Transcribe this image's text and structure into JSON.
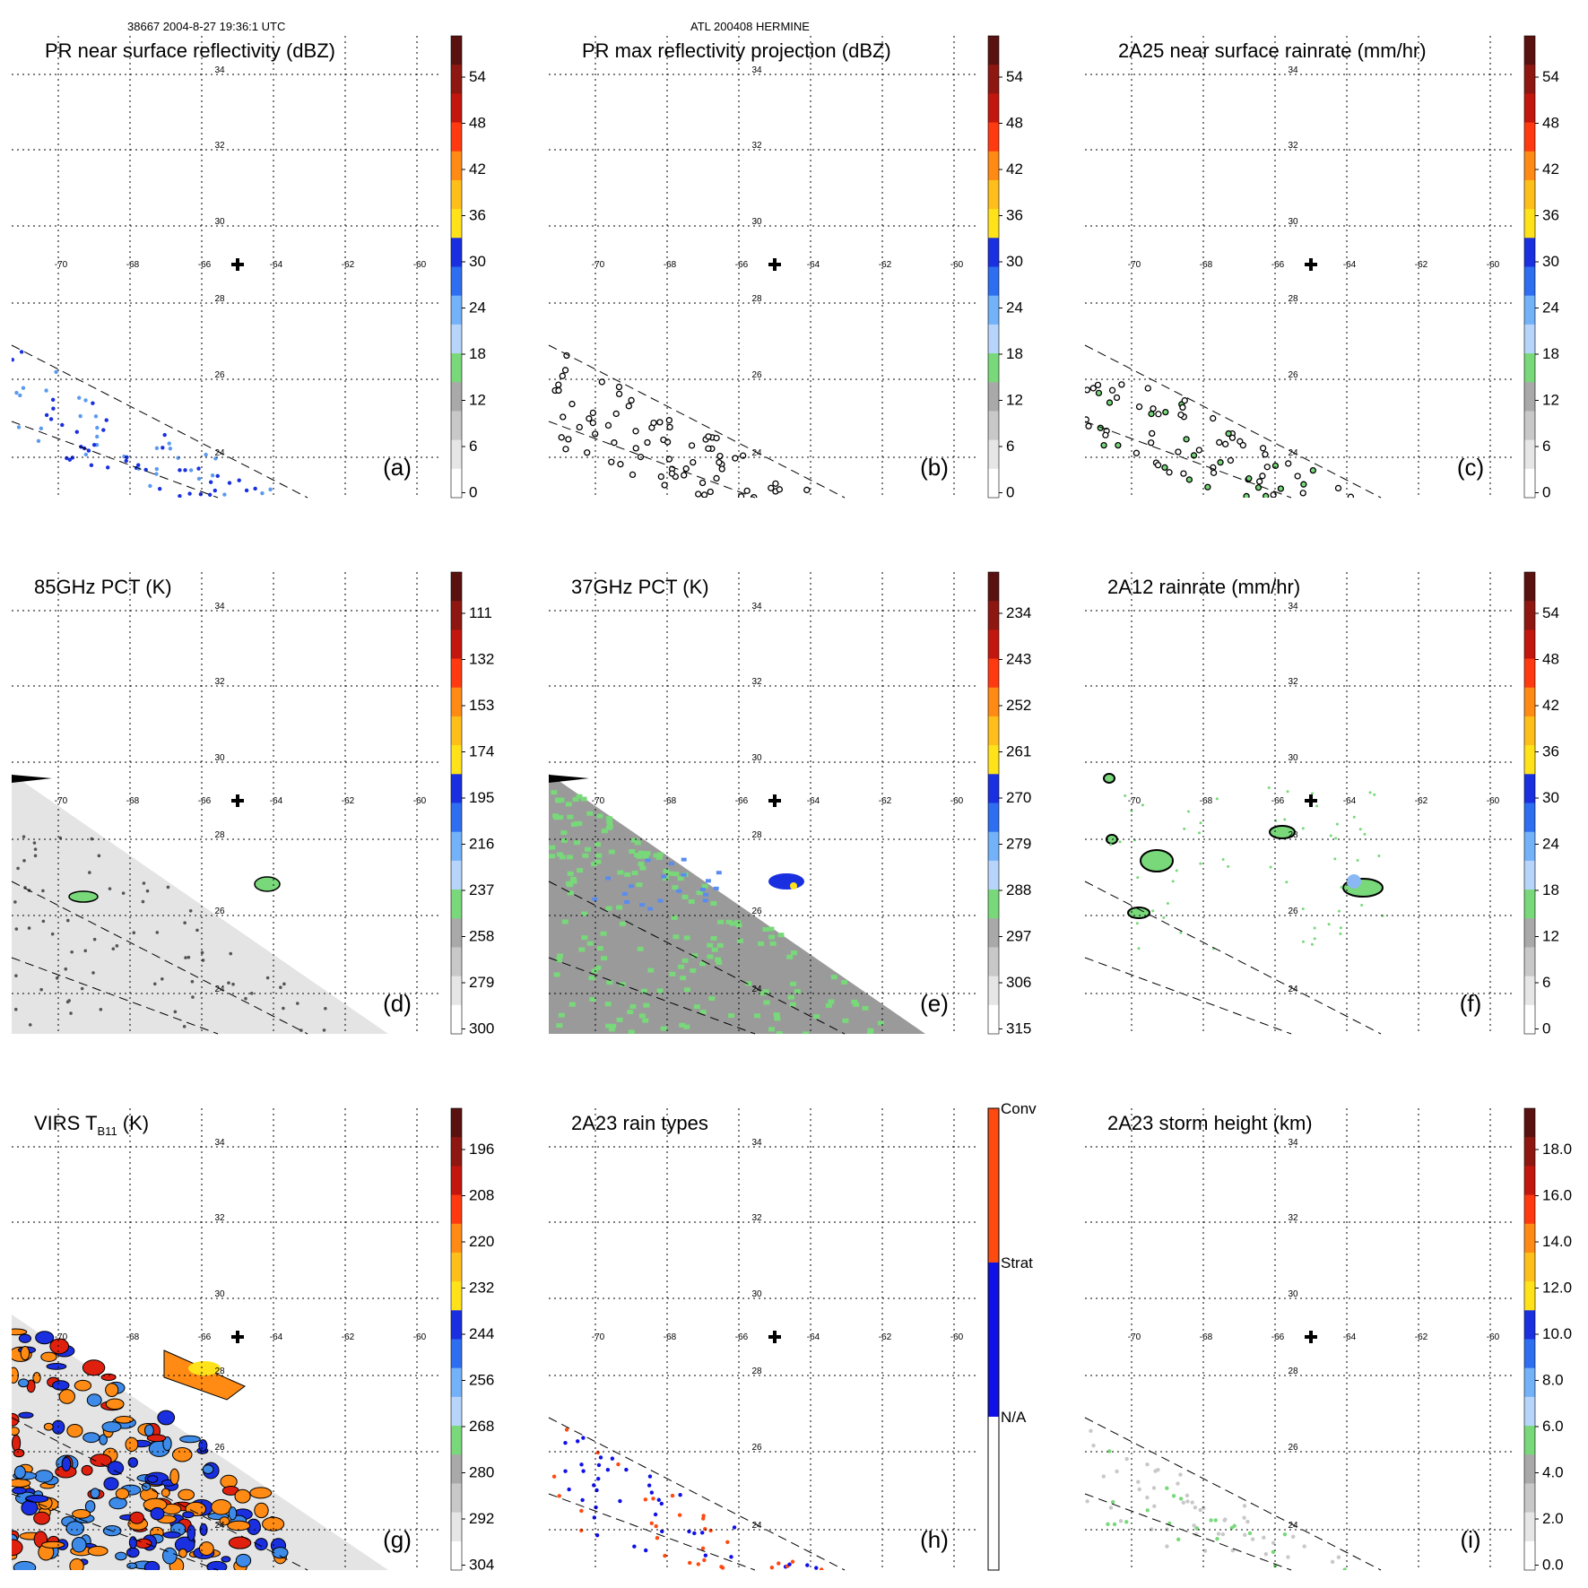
{
  "header": {
    "left": "38667 2004-8-27 19:36:1 UTC",
    "center": "ATL 200408 HERMINE"
  },
  "lon_labels": [
    "-70",
    "-68",
    "-66",
    "-64",
    "-62",
    "-60"
  ],
  "lat_labels": [
    "34",
    "32",
    "30",
    "28",
    "26",
    "24"
  ],
  "colors": {
    "cbar_gray": "#a9a9a9",
    "cbar_green": "#78d87a",
    "cbar_blue": "#1a2fe0",
    "cbar_yellow": "#ffe21a",
    "cbar_orange": "#ff8a14",
    "cbar_red": "#e0200f",
    "cbar_dark": "#5a1210",
    "raintype_conv": "#ff4a10",
    "raintype_strat": "#1010e8"
  },
  "panels": [
    {
      "id": "a",
      "title": "PR near surface reflectivity (dBZ)",
      "letter": "(a)",
      "ticks": [
        "54",
        "48",
        "42",
        "36",
        "30",
        "24",
        "18",
        "12",
        "6",
        "0"
      ],
      "field": "pr_sparse"
    },
    {
      "id": "b",
      "title": "PR max reflectivity projection (dBZ)",
      "letter": "(b)",
      "ticks": [
        "54",
        "48",
        "42",
        "36",
        "30",
        "24",
        "18",
        "12",
        "6",
        "0"
      ],
      "field": "pr_contours"
    },
    {
      "id": "c",
      "title": "2A25 near surface rainrate (mm/hr)",
      "letter": "(c)",
      "ticks": [
        "54",
        "48",
        "42",
        "36",
        "30",
        "24",
        "18",
        "12",
        "6",
        "0"
      ],
      "field": "pr_contours_green"
    },
    {
      "id": "d",
      "title": "85GHz PCT (K)",
      "letter": "(d)",
      "ticks": [
        "111",
        "132",
        "153",
        "174",
        "195",
        "216",
        "237",
        "258",
        "279",
        "300"
      ],
      "field": "tmi_gray"
    },
    {
      "id": "e",
      "title": "37GHz PCT (K)",
      "letter": "(e)",
      "ticks": [
        "234",
        "243",
        "252",
        "261",
        "270",
        "279",
        "288",
        "297",
        "306",
        "315"
      ],
      "field": "tmi_green"
    },
    {
      "id": "f",
      "title": "2A12 rainrate (mm/hr)",
      "letter": "(f)",
      "ticks": [
        "54",
        "48",
        "42",
        "36",
        "30",
        "24",
        "18",
        "12",
        "6",
        "0"
      ],
      "field": "tmi_rain"
    },
    {
      "id": "g",
      "title_main": "VIRS T",
      "title_sub": "B11",
      "title_tail": " (K)",
      "letter": "(g)",
      "ticks": [
        "196",
        "208",
        "220",
        "232",
        "244",
        "256",
        "268",
        "280",
        "292",
        "304"
      ],
      "field": "virs"
    },
    {
      "id": "h",
      "title": "2A23 rain types",
      "letter": "(h)",
      "ticks": [
        "Conv",
        "Strat",
        "N/A"
      ],
      "field": "raintype"
    },
    {
      "id": "i",
      "title": "2A23 storm height (km)",
      "letter": "(i)",
      "ticks": [
        "18.0",
        "16.0",
        "14.0",
        "12.0",
        "10.0",
        "8.0",
        "6.0",
        "4.0",
        "2.0",
        "0.0"
      ],
      "field": "height"
    }
  ]
}
